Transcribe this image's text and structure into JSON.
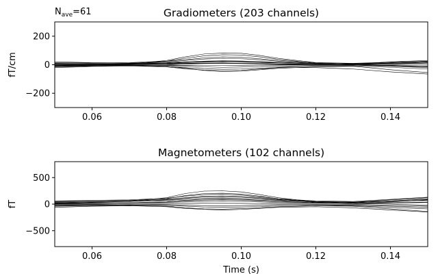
{
  "chart_data": [
    {
      "type": "line",
      "title": "Gradiometers (203 channels)",
      "nave_label": "N",
      "nave_sub": "ave",
      "nave_value": "=61",
      "ylabel": "fT/cm",
      "xlim": [
        0.05,
        0.15
      ],
      "ylim": [
        -300,
        300
      ],
      "xticks": [
        0.06,
        0.08,
        0.1,
        0.12,
        0.14
      ],
      "xtick_labels": [
        "0.06",
        "0.08",
        "0.10",
        "0.12",
        "0.14"
      ],
      "yticks": [
        -200,
        0,
        200
      ],
      "ytick_labels": [
        "−200",
        "0",
        "200"
      ],
      "x": [
        0.05,
        0.06,
        0.07,
        0.08,
        0.085,
        0.09,
        0.095,
        0.1,
        0.105,
        0.11,
        0.12,
        0.13,
        0.14,
        0.15
      ],
      "series": [
        {
          "values": [
            -10,
            -2,
            5,
            30,
            55,
            75,
            82,
            80,
            65,
            45,
            15,
            5,
            10,
            20
          ]
        },
        {
          "values": [
            -5,
            0,
            8,
            25,
            45,
            62,
            70,
            68,
            55,
            38,
            12,
            2,
            5,
            12
          ]
        },
        {
          "values": [
            20,
            15,
            12,
            20,
            30,
            40,
            45,
            42,
            35,
            25,
            10,
            5,
            20,
            30
          ]
        },
        {
          "values": [
            -15,
            -10,
            -5,
            -10,
            -25,
            -40,
            -48,
            -45,
            -35,
            -25,
            -15,
            -10,
            -35,
            -55
          ]
        },
        {
          "values": [
            -20,
            -12,
            -8,
            -15,
            -28,
            -38,
            -42,
            -40,
            -30,
            -20,
            -20,
            -30,
            -50,
            -65
          ]
        },
        {
          "values": [
            10,
            8,
            10,
            15,
            20,
            25,
            28,
            26,
            22,
            18,
            10,
            8,
            15,
            25
          ]
        },
        {
          "values": [
            5,
            5,
            6,
            10,
            15,
            18,
            20,
            18,
            15,
            12,
            8,
            6,
            10,
            15
          ]
        },
        {
          "values": [
            0,
            2,
            4,
            8,
            10,
            12,
            12,
            10,
            8,
            6,
            4,
            0,
            -5,
            -10
          ]
        },
        {
          "values": [
            -5,
            -3,
            -2,
            -5,
            -10,
            -15,
            -18,
            -16,
            -12,
            -10,
            -5,
            -3,
            -10,
            -20
          ]
        },
        {
          "values": [
            15,
            12,
            15,
            25,
            35,
            48,
            55,
            52,
            42,
            30,
            15,
            10,
            18,
            25
          ]
        },
        {
          "values": [
            -8,
            -5,
            -3,
            0,
            5,
            8,
            10,
            8,
            5,
            2,
            0,
            -2,
            -8,
            -15
          ]
        },
        {
          "values": [
            3,
            0,
            2,
            5,
            8,
            10,
            10,
            9,
            7,
            5,
            2,
            0,
            2,
            5
          ]
        },
        {
          "values": [
            -12,
            -8,
            -6,
            -12,
            -20,
            -28,
            -32,
            -30,
            -25,
            -18,
            -10,
            -8,
            -18,
            -30
          ]
        },
        {
          "values": [
            8,
            6,
            8,
            12,
            18,
            22,
            24,
            22,
            18,
            14,
            8,
            5,
            12,
            18
          ]
        },
        {
          "values": [
            -2,
            -1,
            0,
            -2,
            -5,
            -6,
            -6,
            -5,
            -3,
            -2,
            -1,
            -2,
            -5,
            -8
          ]
        }
      ]
    },
    {
      "type": "line",
      "title": "Magnetometers (102 channels)",
      "ylabel": "fT",
      "xlabel": "Time (s)",
      "xlim": [
        0.05,
        0.15
      ],
      "ylim": [
        -800,
        800
      ],
      "xticks": [
        0.06,
        0.08,
        0.1,
        0.12,
        0.14
      ],
      "xtick_labels": [
        "0.06",
        "0.08",
        "0.10",
        "0.12",
        "0.14"
      ],
      "yticks": [
        -500,
        0,
        500
      ],
      "ytick_labels": [
        "−500",
        "0",
        "500"
      ],
      "x": [
        0.05,
        0.06,
        0.07,
        0.08,
        0.085,
        0.09,
        0.095,
        0.1,
        0.105,
        0.11,
        0.12,
        0.13,
        0.14,
        0.15
      ],
      "series": [
        {
          "values": [
            20,
            40,
            60,
            120,
            200,
            245,
            250,
            230,
            180,
            120,
            40,
            20,
            60,
            100
          ]
        },
        {
          "values": [
            10,
            30,
            50,
            100,
            160,
            200,
            205,
            190,
            150,
            100,
            30,
            10,
            40,
            80
          ]
        },
        {
          "values": [
            50,
            60,
            70,
            90,
            120,
            150,
            155,
            145,
            120,
            90,
            50,
            40,
            80,
            120
          ]
        },
        {
          "values": [
            -40,
            -30,
            -20,
            -40,
            -70,
            -90,
            -95,
            -85,
            -70,
            -50,
            -30,
            -40,
            -90,
            -140
          ]
        },
        {
          "values": [
            -60,
            -40,
            -30,
            -50,
            -80,
            -100,
            -110,
            -100,
            -80,
            -60,
            -50,
            -70,
            -110,
            -150
          ]
        },
        {
          "values": [
            30,
            40,
            50,
            70,
            90,
            110,
            115,
            105,
            90,
            70,
            40,
            30,
            50,
            70
          ]
        },
        {
          "values": [
            0,
            10,
            20,
            30,
            40,
            50,
            55,
            50,
            40,
            30,
            20,
            10,
            0,
            -20
          ]
        },
        {
          "values": [
            -20,
            -10,
            0,
            -10,
            -20,
            -30,
            -35,
            -30,
            -20,
            -10,
            -10,
            -20,
            -40,
            -60
          ]
        },
        {
          "values": [
            60,
            70,
            80,
            110,
            150,
            180,
            185,
            170,
            140,
            100,
            60,
            50,
            90,
            130
          ]
        },
        {
          "values": [
            15,
            20,
            25,
            40,
            60,
            75,
            80,
            75,
            60,
            45,
            25,
            15,
            20,
            30
          ]
        },
        {
          "values": [
            -10,
            -5,
            0,
            5,
            10,
            15,
            15,
            12,
            8,
            5,
            0,
            -5,
            -20,
            -40
          ]
        },
        {
          "values": [
            40,
            45,
            55,
            80,
            110,
            135,
            140,
            130,
            110,
            80,
            45,
            35,
            60,
            90
          ]
        },
        {
          "values": [
            -30,
            -20,
            -15,
            -25,
            -40,
            -55,
            -60,
            -55,
            -45,
            -35,
            -25,
            -30,
            -60,
            -90
          ]
        },
        {
          "values": [
            5,
            15,
            25,
            45,
            70,
            90,
            95,
            88,
            72,
            55,
            25,
            10,
            25,
            40
          ]
        }
      ]
    }
  ]
}
